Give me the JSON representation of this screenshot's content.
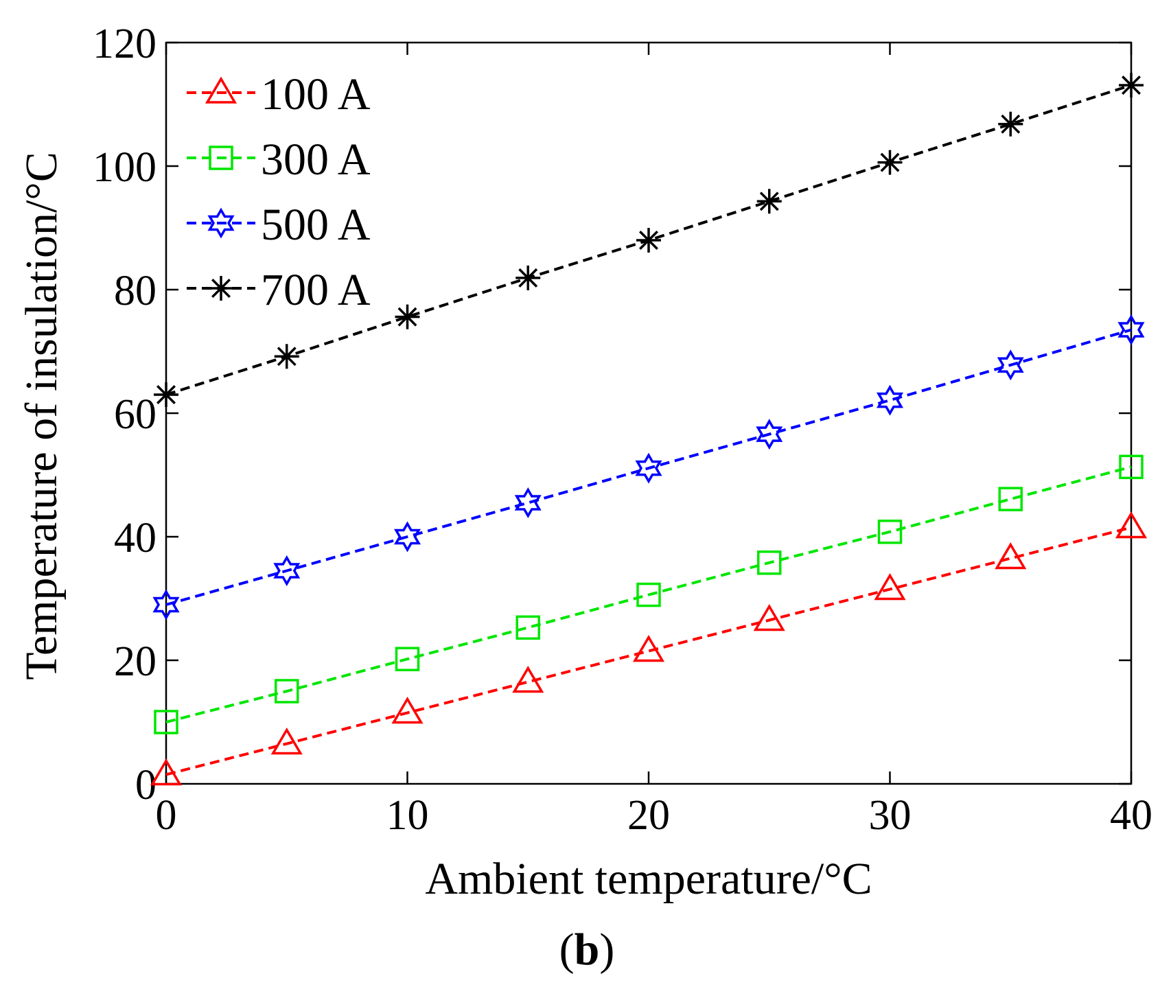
{
  "chart_data": {
    "type": "line",
    "title": "",
    "xlabel": "Ambient temperature/°C",
    "ylabel": "Temperature of insulation/°C",
    "xlim": [
      0,
      40
    ],
    "ylim": [
      0,
      120
    ],
    "xticks": [
      0,
      10,
      20,
      30,
      40
    ],
    "yticks": [
      0,
      20,
      40,
      60,
      80,
      100,
      120
    ],
    "grid": false,
    "legend_position": "top-left",
    "panel_label": {
      "open": "(",
      "letter": "b",
      "close": ")"
    },
    "x": [
      0,
      5,
      10,
      15,
      20,
      25,
      30,
      35,
      40
    ],
    "series": [
      {
        "name": "100 A",
        "color": "#ff0000",
        "marker": "triangle",
        "values": [
          1.5,
          6.5,
          11.5,
          16.5,
          21.5,
          26.5,
          31.5,
          36.5,
          41.5
        ]
      },
      {
        "name": "300 A",
        "color": "#00e600",
        "marker": "square",
        "values": [
          10,
          15,
          20.2,
          25.3,
          30.6,
          35.8,
          40.8,
          46.1,
          51.3
        ]
      },
      {
        "name": "500 A",
        "color": "#0000ff",
        "marker": "hexagram",
        "values": [
          29,
          34.5,
          40,
          45.5,
          51.1,
          56.6,
          62.1,
          67.8,
          73.5
        ]
      },
      {
        "name": "700 A",
        "color": "#000000",
        "marker": "asterisk",
        "values": [
          63,
          69.2,
          75.6,
          81.9,
          88,
          94.3,
          100.6,
          106.8,
          113.1
        ]
      }
    ]
  }
}
